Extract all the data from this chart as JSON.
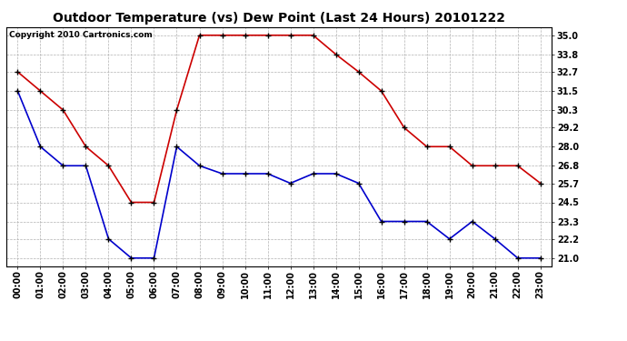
{
  "title": "Outdoor Temperature (vs) Dew Point (Last 24 Hours) 20101222",
  "copyright": "Copyright 2010 Cartronics.com",
  "hours": [
    "00:00",
    "01:00",
    "02:00",
    "03:00",
    "04:00",
    "05:00",
    "06:00",
    "07:00",
    "08:00",
    "09:00",
    "10:00",
    "11:00",
    "12:00",
    "13:00",
    "14:00",
    "15:00",
    "16:00",
    "17:00",
    "18:00",
    "19:00",
    "20:00",
    "21:00",
    "22:00",
    "23:00"
  ],
  "temp": [
    32.7,
    31.5,
    30.3,
    28.0,
    26.8,
    24.5,
    24.5,
    30.3,
    35.0,
    35.0,
    35.0,
    35.0,
    35.0,
    35.0,
    33.8,
    32.7,
    31.5,
    29.2,
    28.0,
    28.0,
    26.8,
    26.8,
    26.8,
    25.7
  ],
  "dew": [
    31.5,
    28.0,
    26.8,
    26.8,
    22.2,
    21.0,
    21.0,
    28.0,
    26.8,
    26.3,
    26.3,
    26.3,
    25.7,
    26.3,
    26.3,
    25.7,
    23.3,
    23.3,
    23.3,
    22.2,
    23.3,
    22.2,
    21.0,
    21.0
  ],
  "temp_color": "#cc0000",
  "dew_color": "#0000cc",
  "bg_color": "#ffffff",
  "plot_bg_color": "#ffffff",
  "grid_color": "#aaaaaa",
  "ylim_min": 21.0,
  "ylim_max": 35.0,
  "yticks": [
    35.0,
    33.8,
    32.7,
    31.5,
    30.3,
    29.2,
    28.0,
    26.8,
    25.7,
    24.5,
    23.3,
    22.2,
    21.0
  ],
  "title_fontsize": 10,
  "copyright_fontsize": 6.5,
  "tick_fontsize": 7,
  "marker": "+",
  "marker_size": 5,
  "marker_color_temp": "#000000",
  "marker_color_dew": "#000000",
  "line_width": 1.2
}
